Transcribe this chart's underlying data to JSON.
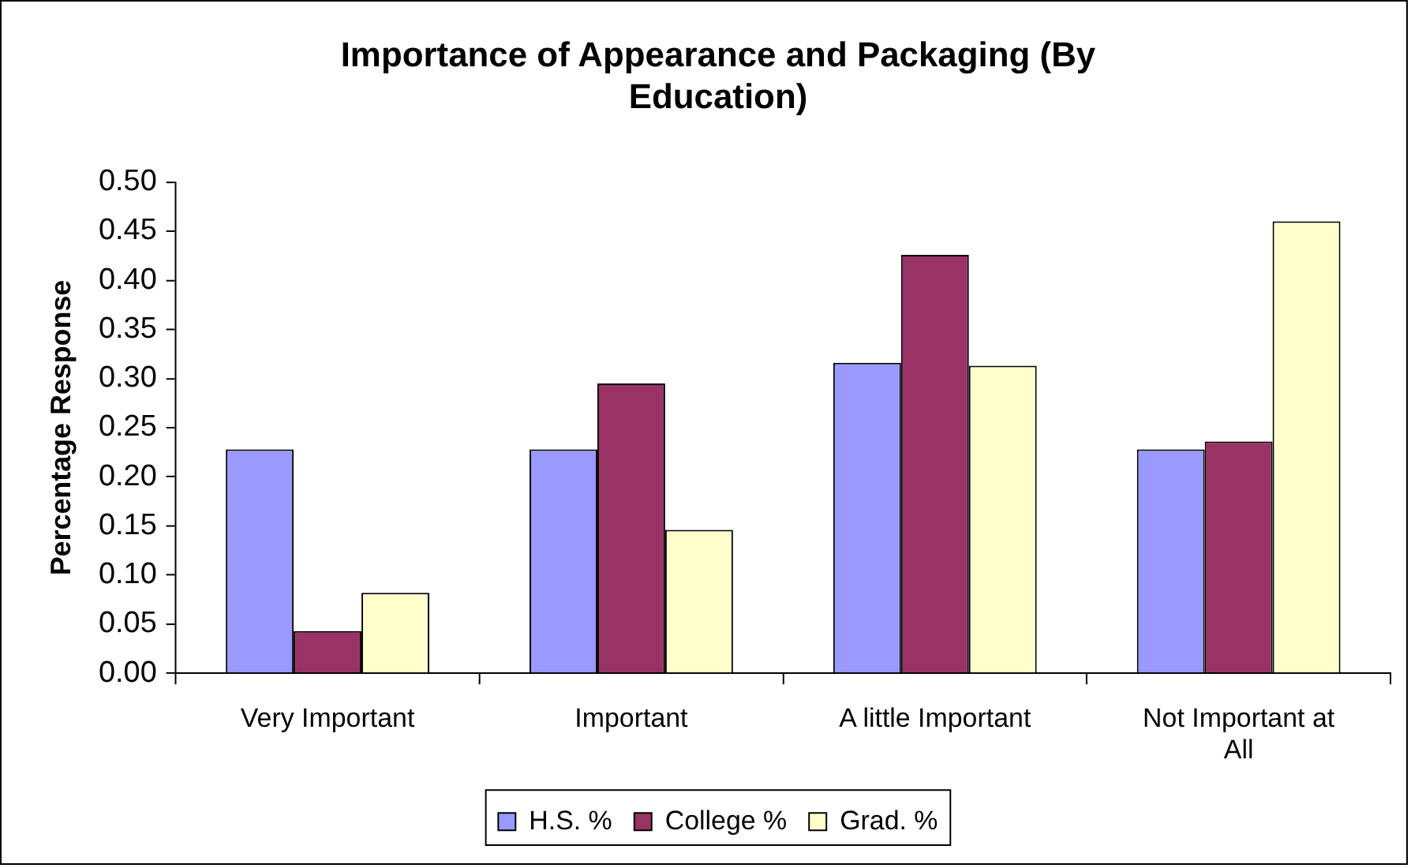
{
  "chart_data": {
    "type": "bar",
    "title": "Importance of Appearance and Packaging (By Education)",
    "ylabel": "Percentage Response",
    "categories": [
      "Very Important",
      "Important",
      "A little Important",
      "Not Important at All"
    ],
    "series": [
      {
        "name": "H.S. %",
        "color": "#9999ff",
        "values": [
          0.228,
          0.228,
          0.316,
          0.228
        ]
      },
      {
        "name": "College %",
        "color": "#993366",
        "values": [
          0.043,
          0.295,
          0.426,
          0.236
        ]
      },
      {
        "name": "Grad. %",
        "color": "#ffffcc",
        "values": [
          0.082,
          0.146,
          0.313,
          0.46
        ]
      }
    ],
    "ylim": [
      0,
      0.5
    ],
    "yticks": [
      {
        "value": 0,
        "label": "0.00"
      },
      {
        "value": 0.05,
        "label": "0.05"
      },
      {
        "value": 0.1,
        "label": "0.10"
      },
      {
        "value": 0.15,
        "label": "0.15"
      },
      {
        "value": 0.2,
        "label": "0.20"
      },
      {
        "value": 0.25,
        "label": "0.25"
      },
      {
        "value": 0.3,
        "label": "0.30"
      },
      {
        "value": 0.35,
        "label": "0.35"
      },
      {
        "value": 0.4,
        "label": "0.40"
      },
      {
        "value": 0.45,
        "label": "0.45"
      },
      {
        "value": 0.5,
        "label": "0.50"
      }
    ],
    "legend": "bottom"
  }
}
